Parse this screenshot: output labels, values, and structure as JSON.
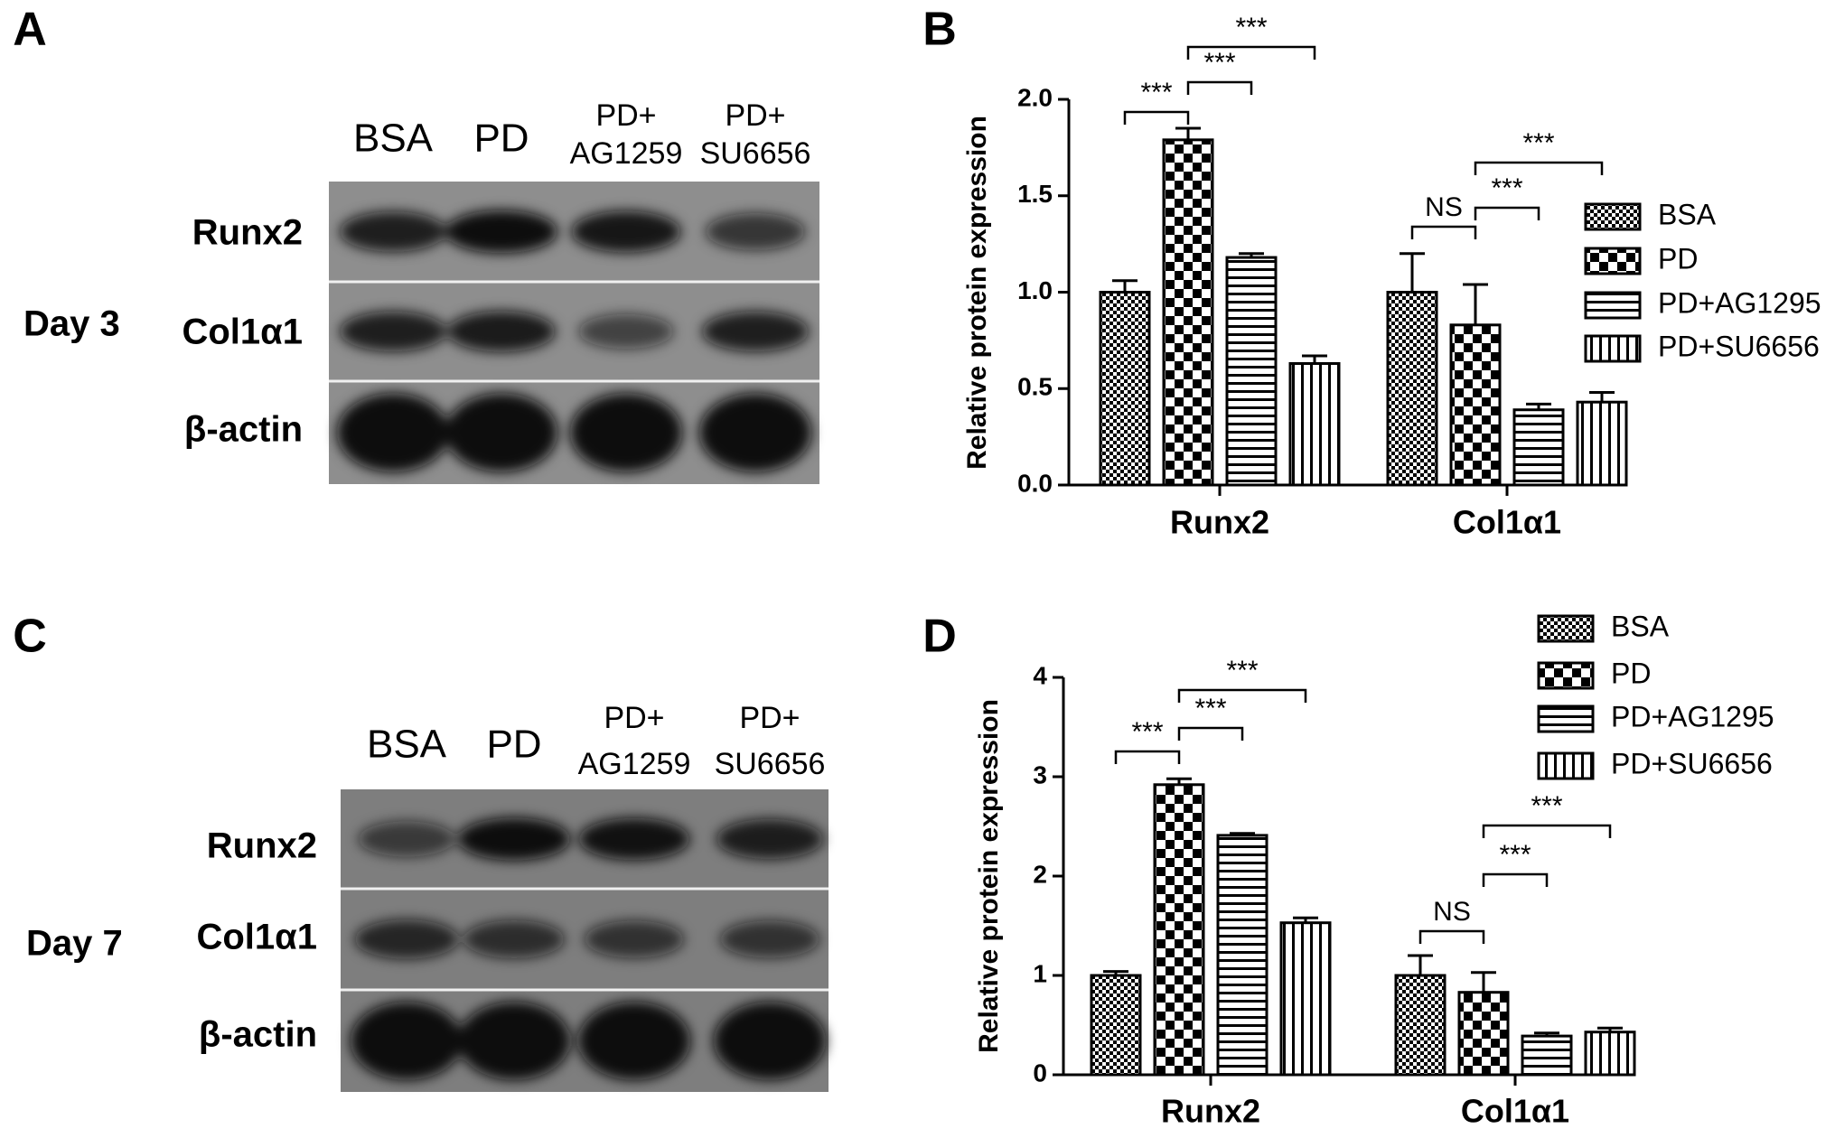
{
  "blots": [
    {
      "panel": "A",
      "day": "Day 3",
      "lanes": [
        [
          "BSA"
        ],
        [
          "PD"
        ],
        [
          "PD+",
          "AG1259"
        ],
        [
          "PD+",
          "SU6656"
        ]
      ],
      "rows": [
        "Runx2",
        "Col1α1",
        "β-actin"
      ]
    },
    {
      "panel": "C",
      "day": "Day 7",
      "lanes": [
        [
          "BSA"
        ],
        [
          "PD"
        ],
        [
          "PD+",
          "AG1259"
        ],
        [
          "PD+",
          "SU6656"
        ]
      ],
      "rows": [
        "Runx2",
        "Col1α1",
        "β-actin"
      ]
    }
  ],
  "chart_data": [
    {
      "type": "bar",
      "panel": "B",
      "y_label": "Relative protein expression",
      "categories": [
        "Runx2",
        "Col1α1"
      ],
      "series": [
        {
          "name": "BSA",
          "color": "#000000",
          "pattern": "fine-check",
          "values": [
            1.0,
            1.0
          ],
          "errors": [
            0.06,
            0.2
          ]
        },
        {
          "name": "PD",
          "color": "#000000",
          "pattern": "coarse-check",
          "values": [
            1.79,
            0.83
          ],
          "errors": [
            0.06,
            0.21
          ]
        },
        {
          "name": "PD+AG1295",
          "color": "#000000",
          "pattern": "horizontal-stripes",
          "values": [
            1.18,
            0.39
          ],
          "errors": [
            0.02,
            0.03
          ]
        },
        {
          "name": "PD+SU6656",
          "color": "#000000",
          "pattern": "vertical-stripes",
          "values": [
            0.63,
            0.43
          ],
          "errors": [
            0.04,
            0.05
          ]
        }
      ],
      "ylim": [
        0,
        2
      ],
      "yticks": [
        {
          "value": 0,
          "label": "0.0"
        },
        0.5,
        {
          "value": 1,
          "label": "1.0"
        },
        1.5,
        {
          "value": 2,
          "label": "2.0"
        }
      ],
      "legend": "right",
      "annotations": [
        "***",
        "***",
        "***",
        "NS",
        "***",
        "***"
      ]
    },
    {
      "type": "bar",
      "panel": "D",
      "y_label": "Relative protein expression",
      "categories": [
        "Runx2",
        "Col1α1"
      ],
      "series": [
        {
          "name": "BSA",
          "color": "#000000",
          "pattern": "fine-check",
          "values": [
            1.0,
            1.0
          ],
          "errors": [
            0.04,
            0.2
          ]
        },
        {
          "name": "PD",
          "color": "#000000",
          "pattern": "coarse-check",
          "values": [
            2.92,
            0.83
          ],
          "errors": [
            0.06,
            0.2
          ]
        },
        {
          "name": "PD+AG1295",
          "color": "#000000",
          "pattern": "horizontal-stripes",
          "values": [
            2.41,
            0.39
          ],
          "errors": [
            0.02,
            0.03
          ]
        },
        {
          "name": "PD+SU6656",
          "color": "#000000",
          "pattern": "vertical-stripes",
          "values": [
            1.53,
            0.43
          ],
          "errors": [
            0.05,
            0.04
          ]
        }
      ],
      "ylim": [
        0,
        4
      ],
      "yticks": [
        0,
        1,
        2,
        3,
        4
      ],
      "legend": "top-right",
      "annotations": [
        "***",
        "***",
        "***",
        "NS",
        "***",
        "***"
      ]
    }
  ]
}
